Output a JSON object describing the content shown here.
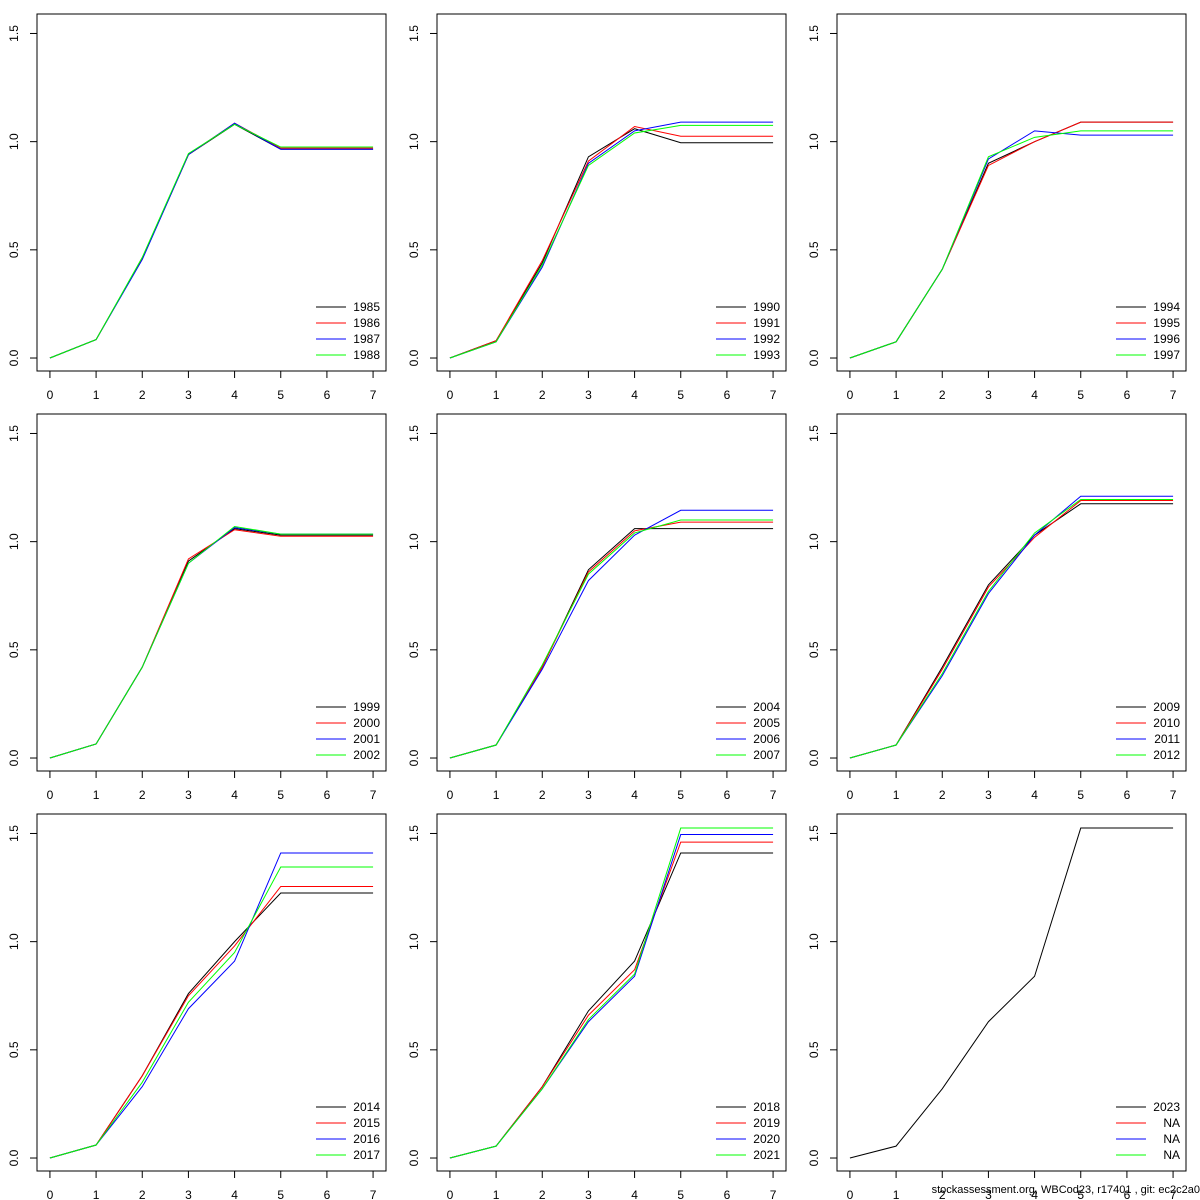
{
  "chart_data": [
    {
      "type": "line",
      "x": [
        0,
        1,
        2,
        3,
        4,
        5,
        6,
        7
      ],
      "xlim": [
        -0.28,
        7.28
      ],
      "ylim": [
        -0.06,
        1.59
      ],
      "xticks": [
        0,
        1,
        2,
        3,
        4,
        5,
        6,
        7
      ],
      "yticks": [
        {
          "value": 0,
          "label": "0.0"
        },
        0.5,
        {
          "value": 1,
          "label": "1.0"
        },
        1.5
      ],
      "legend": "bottomright",
      "series": [
        {
          "name": "1985",
          "color": "#000000",
          "values": [
            0,
            0.085,
            0.46,
            0.94,
            1.08,
            0.965,
            0.965,
            0.965
          ]
        },
        {
          "name": "1986",
          "color": "#ff0000",
          "values": [
            0,
            0.085,
            0.46,
            0.94,
            1.085,
            0.97,
            0.97,
            0.97
          ]
        },
        {
          "name": "1987",
          "color": "#0000ff",
          "values": [
            0,
            0.085,
            0.455,
            0.94,
            1.085,
            0.965,
            0.965,
            0.965
          ]
        },
        {
          "name": "1988",
          "color": "#00ff00",
          "values": [
            0,
            0.085,
            0.465,
            0.945,
            1.08,
            0.975,
            0.975,
            0.975
          ]
        }
      ]
    },
    {
      "type": "line",
      "x": [
        0,
        1,
        2,
        3,
        4,
        5,
        6,
        7
      ],
      "xlim": [
        -0.28,
        7.28
      ],
      "ylim": [
        -0.06,
        1.59
      ],
      "xticks": [
        0,
        1,
        2,
        3,
        4,
        5,
        6,
        7
      ],
      "yticks": [
        {
          "value": 0,
          "label": "0.0"
        },
        0.5,
        {
          "value": 1,
          "label": "1.0"
        },
        1.5
      ],
      "legend": "bottomright",
      "series": [
        {
          "name": "1990",
          "color": "#000000",
          "values": [
            0,
            0.08,
            0.44,
            0.93,
            1.06,
            0.995,
            0.995,
            0.995
          ]
        },
        {
          "name": "1991",
          "color": "#ff0000",
          "values": [
            0,
            0.08,
            0.45,
            0.91,
            1.07,
            1.025,
            1.025,
            1.025
          ]
        },
        {
          "name": "1992",
          "color": "#0000ff",
          "values": [
            0,
            0.075,
            0.42,
            0.9,
            1.05,
            1.09,
            1.09,
            1.09
          ]
        },
        {
          "name": "1993",
          "color": "#00ff00",
          "values": [
            0,
            0.075,
            0.43,
            0.89,
            1.04,
            1.075,
            1.075,
            1.075
          ]
        }
      ]
    },
    {
      "type": "line",
      "x": [
        0,
        1,
        2,
        3,
        4,
        5,
        6,
        7
      ],
      "xlim": [
        -0.28,
        7.28
      ],
      "ylim": [
        -0.06,
        1.59
      ],
      "xticks": [
        0,
        1,
        2,
        3,
        4,
        5,
        6,
        7
      ],
      "yticks": [
        {
          "value": 0,
          "label": "0.0"
        },
        0.5,
        {
          "value": 1,
          "label": "1.0"
        },
        1.5
      ],
      "legend": "bottomright",
      "series": [
        {
          "name": "1994",
          "color": "#000000",
          "values": [
            0,
            0.075,
            0.41,
            0.9,
            1.0,
            1.09,
            1.09,
            1.09
          ]
        },
        {
          "name": "1995",
          "color": "#ff0000",
          "values": [
            0,
            0.075,
            0.41,
            0.89,
            1.0,
            1.09,
            1.09,
            1.09
          ]
        },
        {
          "name": "1996",
          "color": "#0000ff",
          "values": [
            0,
            0.075,
            0.41,
            0.92,
            1.05,
            1.03,
            1.03,
            1.03
          ]
        },
        {
          "name": "1997",
          "color": "#00ff00",
          "values": [
            0,
            0.075,
            0.41,
            0.93,
            1.02,
            1.05,
            1.05,
            1.05
          ]
        }
      ]
    },
    {
      "type": "line",
      "x": [
        0,
        1,
        2,
        3,
        4,
        5,
        6,
        7
      ],
      "xlim": [
        -0.28,
        7.28
      ],
      "ylim": [
        -0.06,
        1.59
      ],
      "xticks": [
        0,
        1,
        2,
        3,
        4,
        5,
        6,
        7
      ],
      "yticks": [
        {
          "value": 0,
          "label": "0.0"
        },
        0.5,
        {
          "value": 1,
          "label": "1.0"
        },
        1.5
      ],
      "legend": "bottomright",
      "series": [
        {
          "name": "1999",
          "color": "#000000",
          "values": [
            0,
            0.065,
            0.42,
            0.91,
            1.06,
            1.03,
            1.03,
            1.03
          ]
        },
        {
          "name": "2000",
          "color": "#ff0000",
          "values": [
            0,
            0.065,
            0.42,
            0.92,
            1.055,
            1.025,
            1.025,
            1.025
          ]
        },
        {
          "name": "2001",
          "color": "#0000ff",
          "values": [
            0,
            0.065,
            0.42,
            0.9,
            1.065,
            1.035,
            1.035,
            1.035
          ]
        },
        {
          "name": "2002",
          "color": "#00ff00",
          "values": [
            0,
            0.065,
            0.42,
            0.9,
            1.07,
            1.035,
            1.035,
            1.035
          ]
        }
      ]
    },
    {
      "type": "line",
      "x": [
        0,
        1,
        2,
        3,
        4,
        5,
        6,
        7
      ],
      "xlim": [
        -0.28,
        7.28
      ],
      "ylim": [
        -0.06,
        1.59
      ],
      "xticks": [
        0,
        1,
        2,
        3,
        4,
        5,
        6,
        7
      ],
      "yticks": [
        {
          "value": 0,
          "label": "0.0"
        },
        0.5,
        {
          "value": 1,
          "label": "1.0"
        },
        1.5
      ],
      "legend": "bottomright",
      "series": [
        {
          "name": "2004",
          "color": "#000000",
          "values": [
            0,
            0.06,
            0.42,
            0.87,
            1.06,
            1.06,
            1.06,
            1.06
          ]
        },
        {
          "name": "2005",
          "color": "#ff0000",
          "values": [
            0,
            0.06,
            0.42,
            0.86,
            1.05,
            1.09,
            1.09,
            1.09
          ]
        },
        {
          "name": "2006",
          "color": "#0000ff",
          "values": [
            0,
            0.06,
            0.41,
            0.82,
            1.03,
            1.145,
            1.145,
            1.145
          ]
        },
        {
          "name": "2007",
          "color": "#00ff00",
          "values": [
            0,
            0.06,
            0.43,
            0.85,
            1.04,
            1.1,
            1.1,
            1.1
          ]
        }
      ]
    },
    {
      "type": "line",
      "x": [
        0,
        1,
        2,
        3,
        4,
        5,
        6,
        7
      ],
      "xlim": [
        -0.28,
        7.28
      ],
      "ylim": [
        -0.06,
        1.59
      ],
      "xticks": [
        0,
        1,
        2,
        3,
        4,
        5,
        6,
        7
      ],
      "yticks": [
        {
          "value": 0,
          "label": "0.0"
        },
        0.5,
        {
          "value": 1,
          "label": "1.0"
        },
        1.5
      ],
      "legend": "bottomright",
      "series": [
        {
          "name": "2009",
          "color": "#000000",
          "values": [
            0,
            0.06,
            0.42,
            0.8,
            1.03,
            1.175,
            1.175,
            1.175
          ]
        },
        {
          "name": "2010",
          "color": "#ff0000",
          "values": [
            0,
            0.06,
            0.41,
            0.79,
            1.02,
            1.19,
            1.19,
            1.19
          ]
        },
        {
          "name": "2011",
          "color": "#0000ff",
          "values": [
            0,
            0.06,
            0.38,
            0.76,
            1.03,
            1.21,
            1.21,
            1.21
          ]
        },
        {
          "name": "2012",
          "color": "#00ff00",
          "values": [
            0,
            0.06,
            0.39,
            0.77,
            1.04,
            1.195,
            1.195,
            1.195
          ]
        }
      ]
    },
    {
      "type": "line",
      "x": [
        0,
        1,
        2,
        3,
        4,
        5,
        6,
        7
      ],
      "xlim": [
        -0.28,
        7.28
      ],
      "ylim": [
        -0.06,
        1.59
      ],
      "xticks": [
        0,
        1,
        2,
        3,
        4,
        5,
        6,
        7
      ],
      "yticks": [
        {
          "value": 0,
          "label": "0.0"
        },
        0.5,
        {
          "value": 1,
          "label": "1.0"
        },
        1.5
      ],
      "legend": "bottomright",
      "series": [
        {
          "name": "2014",
          "color": "#000000",
          "values": [
            0,
            0.06,
            0.38,
            0.76,
            1.0,
            1.225,
            1.225,
            1.225
          ]
        },
        {
          "name": "2015",
          "color": "#ff0000",
          "values": [
            0,
            0.06,
            0.38,
            0.75,
            0.98,
            1.255,
            1.255,
            1.255
          ]
        },
        {
          "name": "2016",
          "color": "#0000ff",
          "values": [
            0,
            0.06,
            0.33,
            0.69,
            0.91,
            1.41,
            1.41,
            1.41
          ]
        },
        {
          "name": "2017",
          "color": "#00ff00",
          "values": [
            0,
            0.06,
            0.35,
            0.72,
            0.95,
            1.345,
            1.345,
            1.345
          ]
        }
      ]
    },
    {
      "type": "line",
      "x": [
        0,
        1,
        2,
        3,
        4,
        5,
        6,
        7
      ],
      "xlim": [
        -0.28,
        7.28
      ],
      "ylim": [
        -0.06,
        1.59
      ],
      "xticks": [
        0,
        1,
        2,
        3,
        4,
        5,
        6,
        7
      ],
      "yticks": [
        {
          "value": 0,
          "label": "0.0"
        },
        0.5,
        {
          "value": 1,
          "label": "1.0"
        },
        1.5
      ],
      "legend": "bottomright",
      "series": [
        {
          "name": "2018",
          "color": "#000000",
          "values": [
            0,
            0.055,
            0.33,
            0.68,
            0.91,
            1.41,
            1.41,
            1.41
          ]
        },
        {
          "name": "2019",
          "color": "#ff0000",
          "values": [
            0,
            0.055,
            0.33,
            0.66,
            0.87,
            1.46,
            1.46,
            1.46
          ]
        },
        {
          "name": "2020",
          "color": "#0000ff",
          "values": [
            0,
            0.055,
            0.32,
            0.63,
            0.84,
            1.495,
            1.495,
            1.495
          ]
        },
        {
          "name": "2021",
          "color": "#00ff00",
          "values": [
            0,
            0.055,
            0.32,
            0.64,
            0.85,
            1.525,
            1.525,
            1.525
          ]
        }
      ]
    },
    {
      "type": "line",
      "x": [
        0,
        1,
        2,
        3,
        4,
        5,
        6,
        7
      ],
      "xlim": [
        -0.28,
        7.28
      ],
      "ylim": [
        -0.06,
        1.59
      ],
      "xticks": [
        0,
        1,
        2,
        3,
        4,
        5,
        6,
        7
      ],
      "yticks": [
        {
          "value": 0,
          "label": "0.0"
        },
        0.5,
        {
          "value": 1,
          "label": "1.0"
        },
        1.5
      ],
      "legend": "bottomright",
      "series": [
        {
          "name": "2023",
          "color": "#000000",
          "values": [
            0,
            0.055,
            0.32,
            0.63,
            0.84,
            1.525,
            1.525,
            1.525
          ]
        },
        {
          "name": "NA",
          "color": "#ff0000",
          "values": [
            null,
            null,
            null,
            null,
            null,
            null,
            null,
            null
          ]
        },
        {
          "name": "NA",
          "color": "#0000ff",
          "values": [
            null,
            null,
            null,
            null,
            null,
            null,
            null,
            null
          ]
        },
        {
          "name": "NA",
          "color": "#00ff00",
          "values": [
            null,
            null,
            null,
            null,
            null,
            null,
            null,
            null
          ]
        }
      ]
    }
  ],
  "footer": "stockassessment.org, WBCod23, r17401 , git: ec2c2a0"
}
